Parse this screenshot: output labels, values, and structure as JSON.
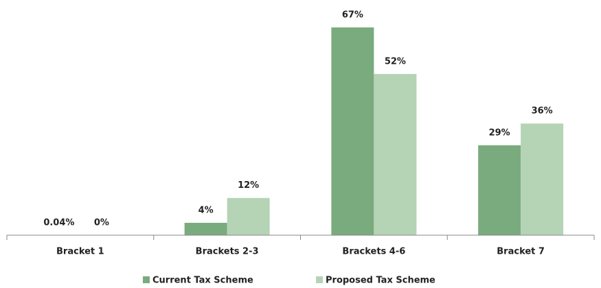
{
  "chart_data": {
    "type": "bar",
    "categories": [
      "Bracket 1",
      "Brackets 2-3",
      "Brackets 4-6",
      "Bracket 7"
    ],
    "series": [
      {
        "name": "Current Tax Scheme",
        "color": "#7aab7e",
        "values": [
          0.04,
          4,
          67,
          29
        ],
        "value_labels": [
          "0.04%",
          "4%",
          "67%",
          "29%"
        ]
      },
      {
        "name": "Proposed Tax Scheme",
        "color": "#b5d3b5",
        "values": [
          0,
          12,
          52,
          36
        ],
        "value_labels": [
          "0%",
          "12%",
          "52%",
          "36%"
        ]
      }
    ],
    "legend": "bottom"
  }
}
